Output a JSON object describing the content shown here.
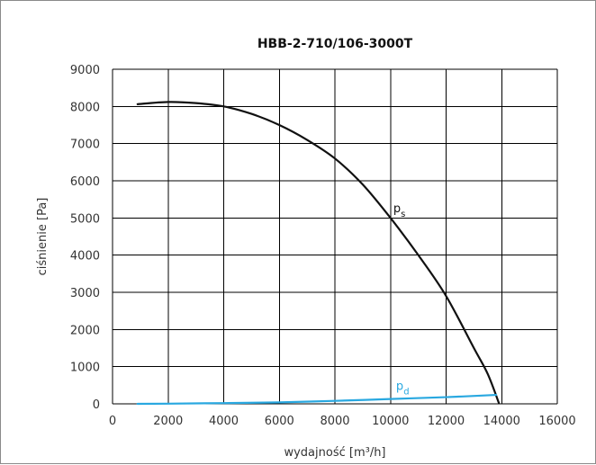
{
  "chart_data": {
    "type": "line",
    "title": "HBB-2-710/106-3000T",
    "xlabel": "wydajność [m³/h]",
    "ylabel": "ciśnienie [Pa]",
    "xlim": [
      0,
      16000
    ],
    "ylim": [
      0,
      9000
    ],
    "x_ticks": [
      "0",
      "2000",
      "4000",
      "6000",
      "8000",
      "10000",
      "12000",
      "14000",
      "16000"
    ],
    "y_ticks": [
      "0",
      "1000",
      "2000",
      "3000",
      "4000",
      "5000",
      "6000",
      "7000",
      "8000",
      "9000"
    ],
    "grid": true,
    "series": [
      {
        "name": "ps",
        "label_main": "p",
        "label_sub": "s",
        "label_at": [
          10100,
          5150
        ],
        "color": "#111111",
        "x": [
          900,
          2000,
          3000,
          4000,
          5000,
          6000,
          7000,
          8000,
          9000,
          10000,
          11000,
          12000,
          13000,
          13500,
          13900
        ],
        "y": [
          8060,
          8120,
          8090,
          8000,
          7800,
          7500,
          7100,
          6600,
          5900,
          5000,
          4000,
          2900,
          1500,
          800,
          20
        ]
      },
      {
        "name": "pd",
        "label_main": "p",
        "label_sub": "d",
        "label_at": [
          10200,
          380
        ],
        "color": "#29a8e0",
        "x": [
          900,
          2000,
          4000,
          6000,
          8000,
          10000,
          12000,
          13800
        ],
        "y": [
          0,
          5,
          20,
          40,
          80,
          130,
          180,
          240
        ]
      }
    ]
  }
}
